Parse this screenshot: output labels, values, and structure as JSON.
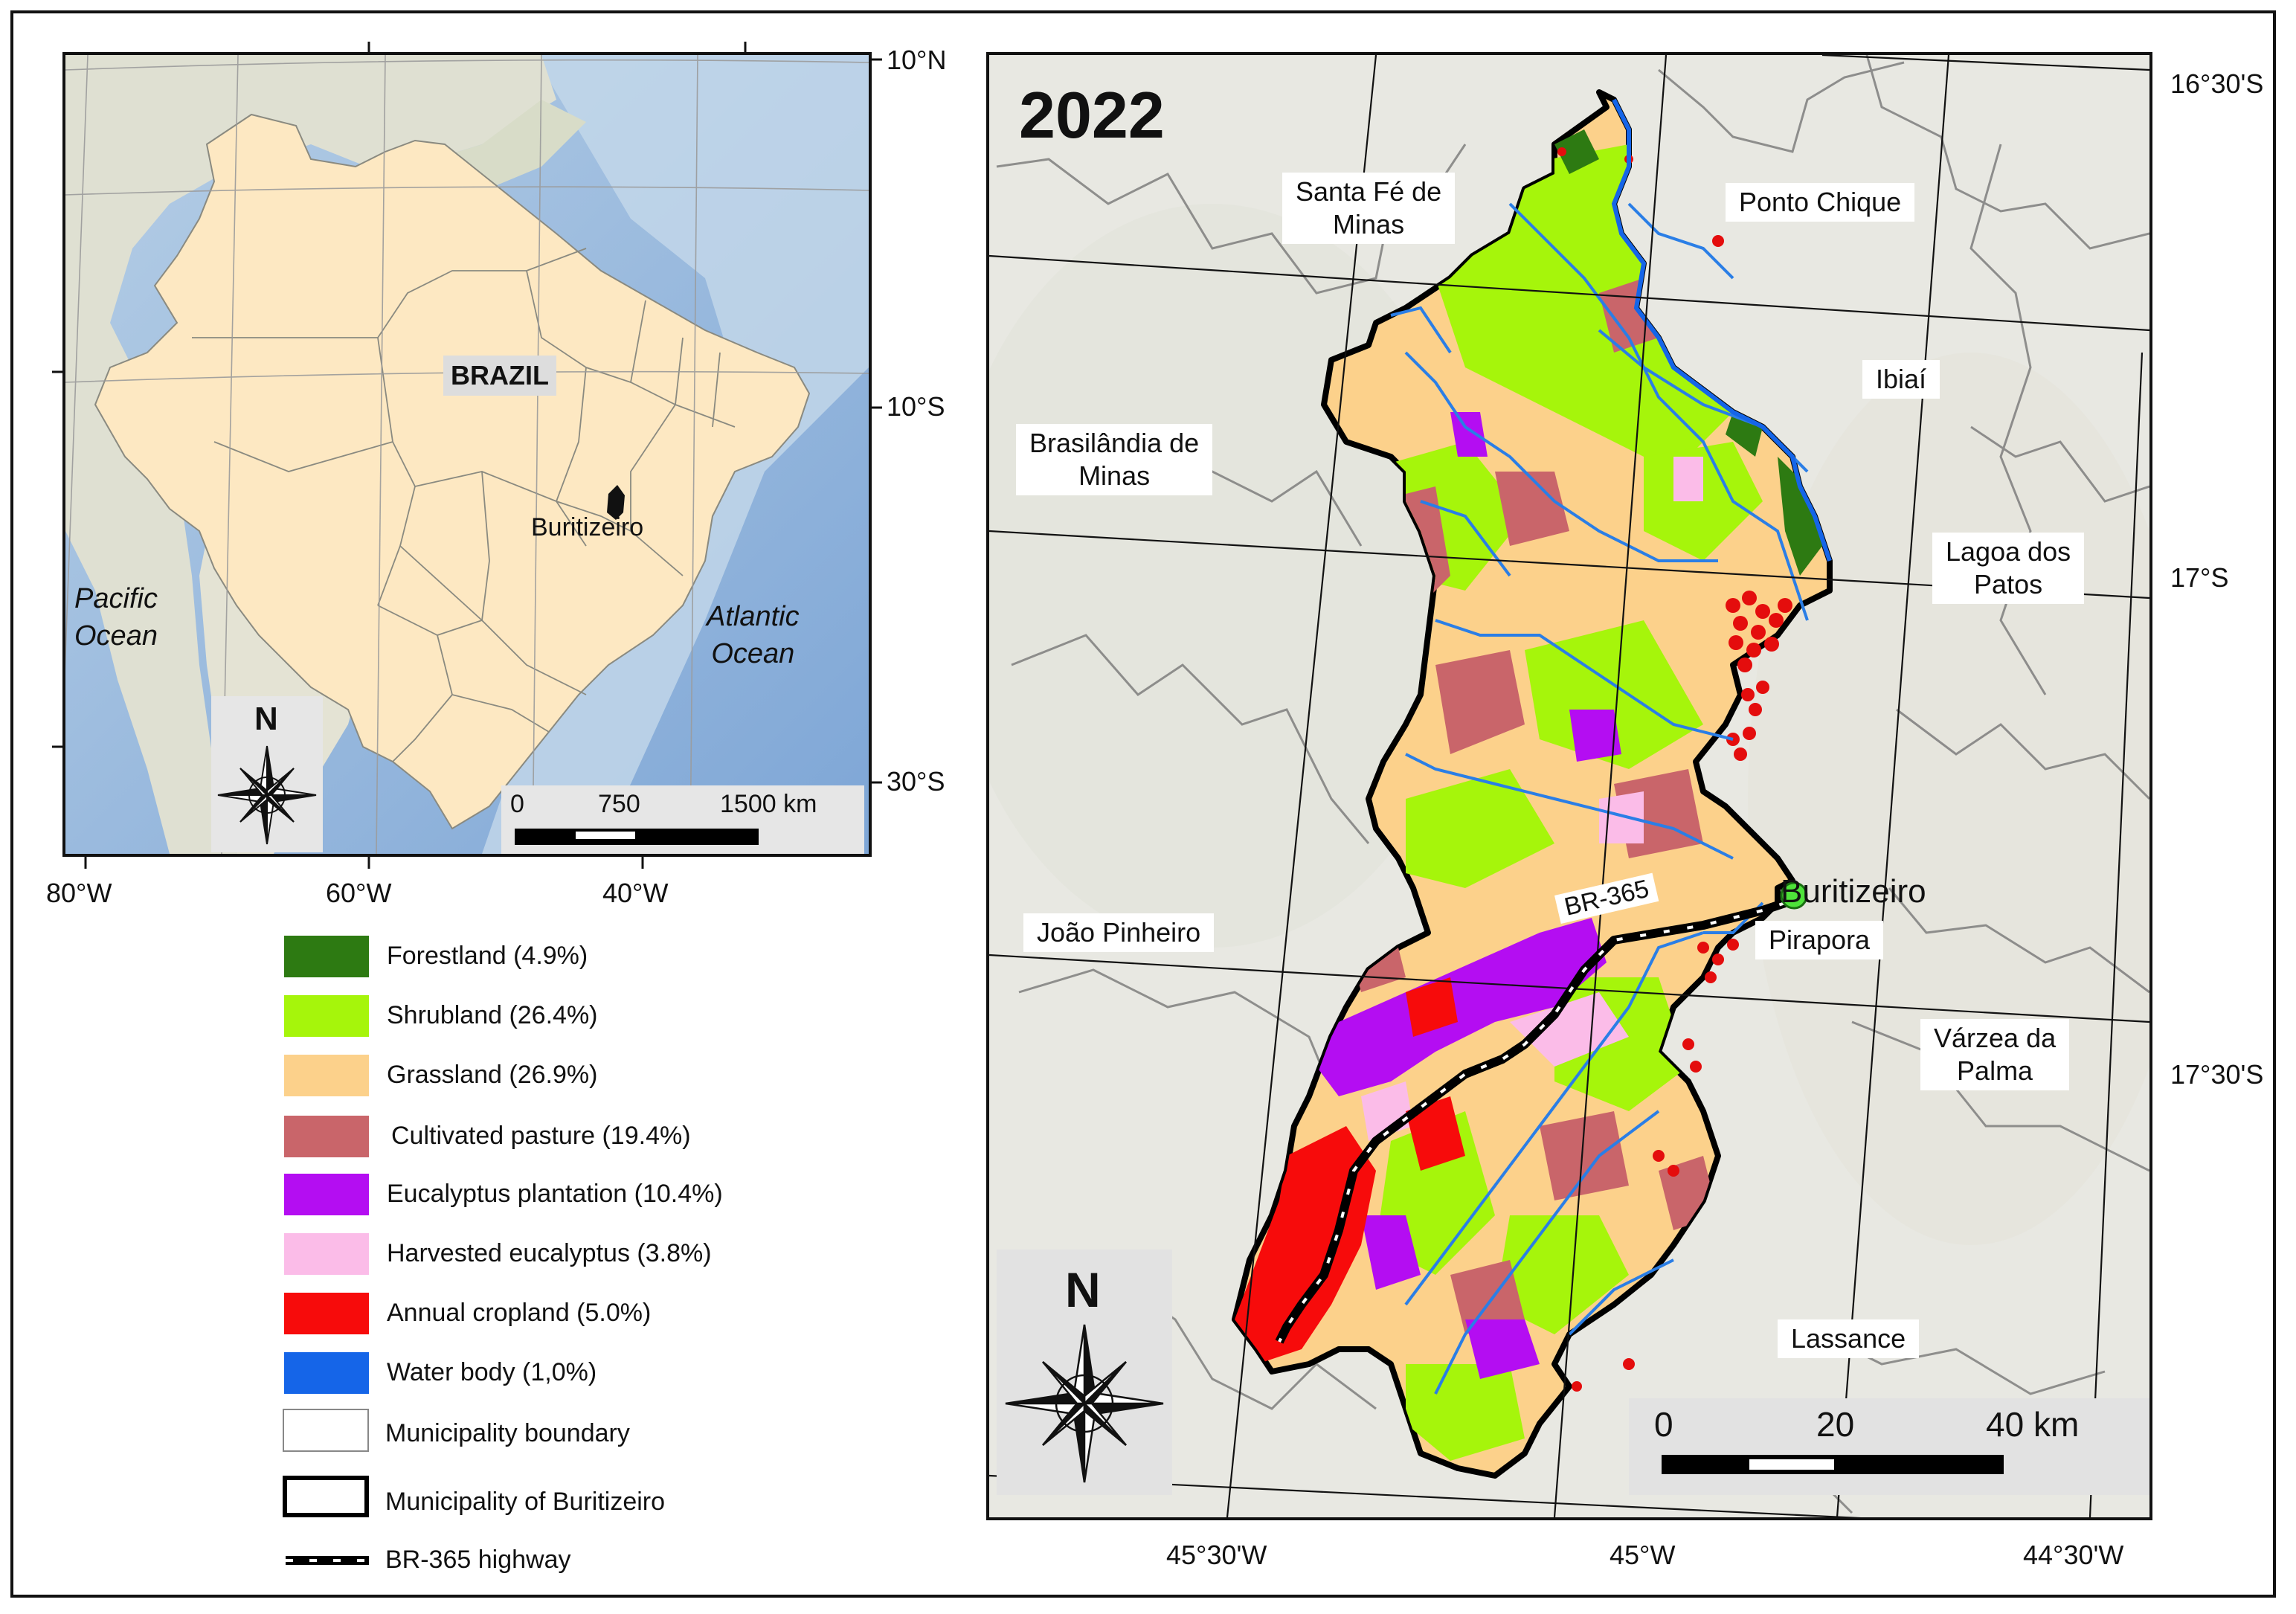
{
  "map_year": "2022",
  "inset": {
    "country_label": "BRAZIL",
    "municipality_label": "Buritizeiro",
    "oceans": [
      "Pacific\nOcean",
      "Atlantic\nOcean"
    ],
    "pacific_line1": "Pacific",
    "pacific_line2": "Ocean",
    "atlantic_line1": "Atlantic",
    "atlantic_line2": "Ocean",
    "lat_labels": [
      "10°N",
      "10°S",
      "30°S"
    ],
    "lon_labels": [
      "80°W",
      "60°W",
      "40°W"
    ],
    "scale": {
      "l0": "0",
      "l1": "750",
      "l2": "1500 km"
    },
    "north": "N"
  },
  "main": {
    "lat_labels": [
      "16°30'S",
      "17°S",
      "17°30'S"
    ],
    "lon_labels": [
      "45°30'W",
      "45°W",
      "44°30'W"
    ],
    "scale": {
      "l0": "0",
      "l1": "20",
      "l2": "40 km"
    },
    "north": "N",
    "municipality_name": "Buritizeiro",
    "highway_label": "BR-365",
    "neighbors": {
      "santa_fe_1": "Santa Fé de",
      "santa_fe_2": "Minas",
      "ponto_chique": "Ponto Chique",
      "ibiai": "Ibiaí",
      "brasilandia_1": "Brasilândia de",
      "brasilandia_2": "Minas",
      "lagoa_1": "Lagoa dos",
      "lagoa_2": "Patos",
      "joao_pinheiro": "João Pinheiro",
      "pirapora": "Pirapora",
      "varzea_1": "Várzea da",
      "varzea_2": "Palma",
      "lassance": "Lassance"
    }
  },
  "legend": [
    {
      "label": "Forestland (4.9%)",
      "color": "#2d7a12"
    },
    {
      "label": "Shrubland (26.4%)",
      "color": "#a6f50b"
    },
    {
      "label": "Grassland (26.9%)",
      "color": "#fcd18b"
    },
    {
      "label": "Cultivated pasture (19.4%)",
      "color": "#c9656a"
    },
    {
      "label": "Eucalyptus plantation (10.4%)",
      "color": "#b40df2"
    },
    {
      "label": "Harvested eucalyptus (3.8%)",
      "color": "#fbbce8"
    },
    {
      "label": "Annual cropland (5.0%)",
      "color": "#f70b0b"
    },
    {
      "label": "Water body (1,0%)",
      "color": "#1565e8"
    },
    {
      "label": "Municipality boundary"
    },
    {
      "label": "Municipality of Buritizeiro"
    },
    {
      "label": "BR-365 highway"
    }
  ]
}
